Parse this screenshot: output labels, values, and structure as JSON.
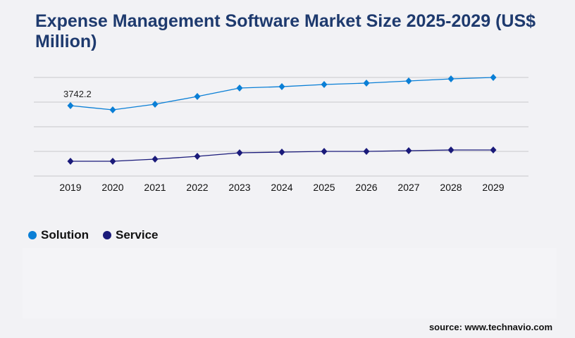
{
  "title": "Expense Management Software Market Size 2025-2029 (US$ Million)",
  "source": "source: www.technavio.com",
  "chart_data": {
    "type": "line",
    "title": "Expense Management Software Market Size 2025-2029 (US$ Million)",
    "xlabel": "",
    "ylabel": "",
    "categories": [
      "2019",
      "2020",
      "2021",
      "2022",
      "2023",
      "2024",
      "2025",
      "2026",
      "2027",
      "2028",
      "2029"
    ],
    "ylim": [
      0,
      5240
    ],
    "grid": true,
    "legend_position": "bottom-left",
    "series": [
      {
        "name": "Solution",
        "color": "#0a7fd6",
        "values": [
          3742.2,
          3518,
          3817,
          4229,
          4678,
          4752,
          4865,
          4940,
          5052,
          5164,
          5239
        ]
      },
      {
        "name": "Service",
        "color": "#1a1a7a",
        "values": [
          786,
          786,
          898,
          1048,
          1235,
          1272,
          1310,
          1310,
          1347,
          1385,
          1385
        ]
      }
    ],
    "annotations": [
      {
        "series": "Solution",
        "category": "2019",
        "label": "3742.2"
      }
    ]
  }
}
